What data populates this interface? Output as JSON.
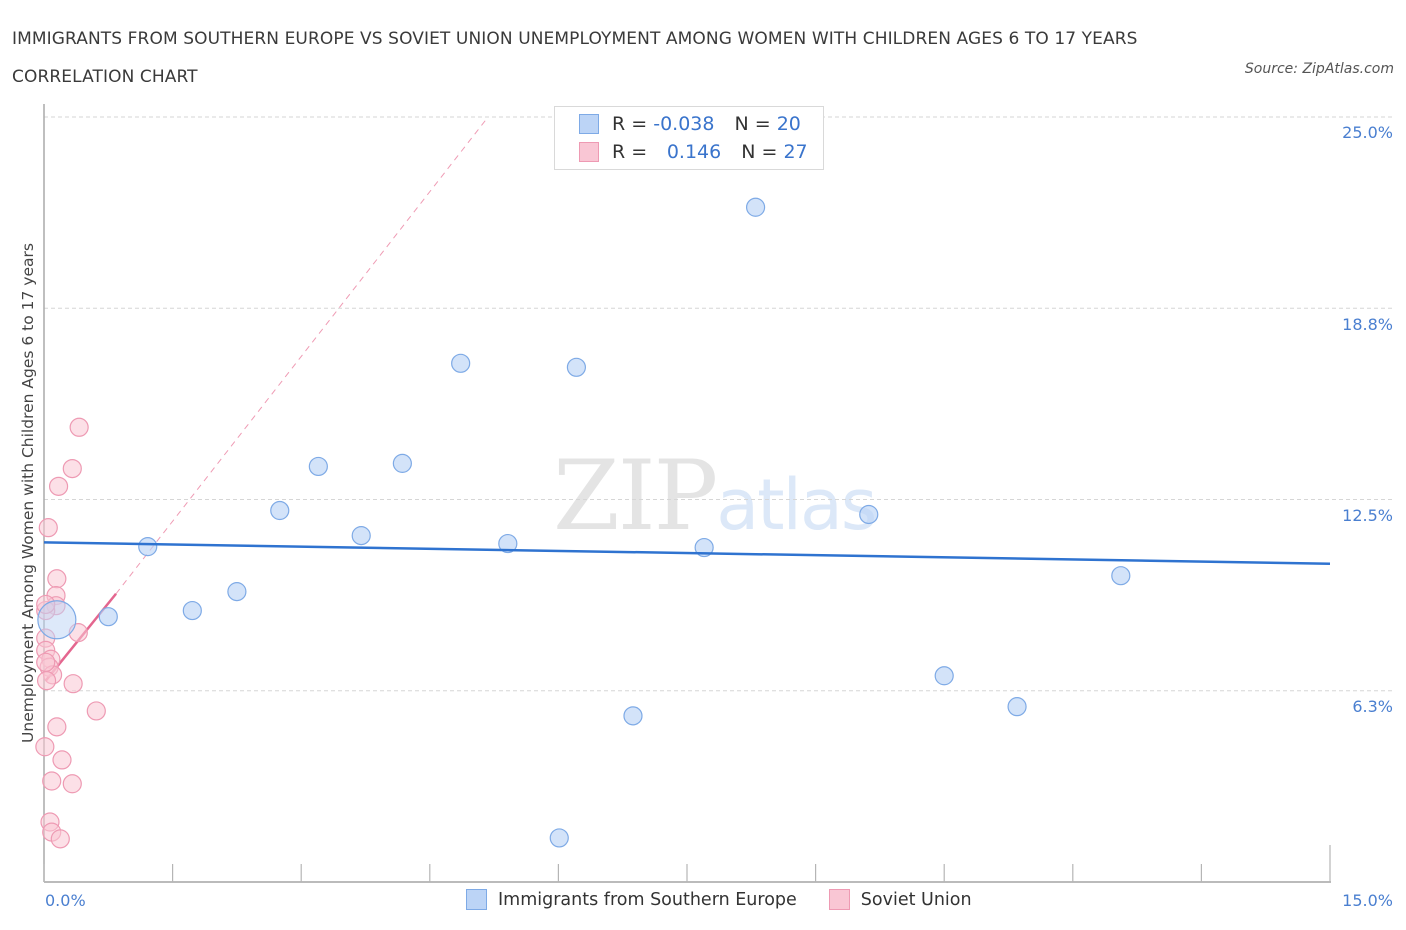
{
  "header": {
    "title": "IMMIGRANTS FROM SOUTHERN EUROPE VS SOVIET UNION UNEMPLOYMENT AMONG WOMEN WITH CHILDREN AGES 6 TO 17 YEARS CORRELATION CHART",
    "source": "Source: ZipAtlas.com"
  },
  "watermark": {
    "part1": "ZIP",
    "part2": "atlas"
  },
  "legend": {
    "rows": [
      {
        "r_label": "R = ",
        "r_value": "-0.038",
        "n_label": "N = ",
        "n_value": "20",
        "color": "#bcd4f6"
      },
      {
        "r_label": "R = ",
        "r_value": "0.146",
        "n_label": "N = ",
        "n_value": "27",
        "color": "#f9c6d4"
      }
    ]
  },
  "axes": {
    "ylabel": "Unemployment Among Women with Children Ages 6 to 17 years",
    "yticks": [
      "25.0%",
      "18.8%",
      "12.5%",
      "6.3%"
    ],
    "xticks": {
      "min": "0.0%",
      "max": "15.0%"
    }
  },
  "bottom_legend": {
    "items": [
      {
        "label": "Immigrants from Southern Europe",
        "color": "#bcd4f6"
      },
      {
        "label": "Soviet Union",
        "color": "#f9c6d4"
      }
    ]
  },
  "chart_data": {
    "type": "scatter",
    "title": "IMMIGRANTS FROM SOUTHERN EUROPE VS SOVIET UNION UNEMPLOYMENT AMONG WOMEN WITH CHILDREN AGES 6 TO 17 YEARS CORRELATION CHART",
    "xlabel": "",
    "ylabel": "Unemployment Among Women with Children Ages 6 to 17 years",
    "xlim": [
      0,
      15
    ],
    "ylim": [
      0,
      25
    ],
    "x_tick_labels": [
      "0.0%",
      "15.0%"
    ],
    "y_tick_labels": [
      "6.3%",
      "12.5%",
      "18.8%",
      "25.0%"
    ],
    "y_tick_values": [
      6.25,
      12.5,
      18.75,
      25.0
    ],
    "grid": {
      "horizontal": true,
      "style": "dashed"
    },
    "legend_position": "top-center and bottom",
    "series": [
      {
        "name": "Immigrants from Southern Europe",
        "color": "#5b93dd",
        "fill": "#bcd4f6",
        "R": -0.038,
        "N": 20,
        "trend": {
          "x": [
            0,
            15
          ],
          "y": [
            11.1,
            10.4
          ]
        },
        "points": [
          {
            "x": 0.15,
            "y": 8.57,
            "size": "large"
          },
          {
            "x": 0.75,
            "y": 8.67
          },
          {
            "x": 1.21,
            "y": 10.96
          },
          {
            "x": 1.73,
            "y": 8.87
          },
          {
            "x": 2.25,
            "y": 9.49
          },
          {
            "x": 2.75,
            "y": 12.14
          },
          {
            "x": 3.2,
            "y": 13.58
          },
          {
            "x": 3.7,
            "y": 11.32
          },
          {
            "x": 4.18,
            "y": 13.68
          },
          {
            "x": 4.86,
            "y": 16.95
          },
          {
            "x": 5.41,
            "y": 11.06
          },
          {
            "x": 6.01,
            "y": 1.44
          },
          {
            "x": 6.21,
            "y": 16.82
          },
          {
            "x": 6.87,
            "y": 5.43
          },
          {
            "x": 7.7,
            "y": 10.93
          },
          {
            "x": 8.3,
            "y": 22.05
          },
          {
            "x": 9.62,
            "y": 12.01
          },
          {
            "x": 10.5,
            "y": 6.74
          },
          {
            "x": 11.35,
            "y": 5.73
          },
          {
            "x": 12.56,
            "y": 10.01
          }
        ]
      },
      {
        "name": "Soviet Union",
        "color": "#e96b92",
        "fill": "#f9c6d4",
        "R": 0.146,
        "N": 27,
        "trend": {
          "x": [
            0.02,
            0.84
          ],
          "y": [
            6.58,
            9.42
          ],
          "dashed_extension_to": {
            "x": 5.18,
            "y": 25.0
          }
        },
        "points": [
          {
            "x": 0.41,
            "y": 14.86
          },
          {
            "x": 0.33,
            "y": 13.51
          },
          {
            "x": 0.17,
            "y": 12.93
          },
          {
            "x": 0.05,
            "y": 11.58
          },
          {
            "x": 0.15,
            "y": 9.91
          },
          {
            "x": 0.14,
            "y": 9.36
          },
          {
            "x": 0.14,
            "y": 9.03
          },
          {
            "x": 0.02,
            "y": 8.87
          },
          {
            "x": 0.4,
            "y": 8.15
          },
          {
            "x": 0.02,
            "y": 7.97
          },
          {
            "x": 0.02,
            "y": 7.57
          },
          {
            "x": 0.08,
            "y": 7.28
          },
          {
            "x": 0.06,
            "y": 7.02
          },
          {
            "x": 0.1,
            "y": 6.77
          },
          {
            "x": 0.03,
            "y": 6.58
          },
          {
            "x": 0.34,
            "y": 6.48
          },
          {
            "x": 0.61,
            "y": 5.59
          },
          {
            "x": 0.15,
            "y": 5.07
          },
          {
            "x": 0.01,
            "y": 4.42
          },
          {
            "x": 0.21,
            "y": 3.99
          },
          {
            "x": 0.09,
            "y": 3.3
          },
          {
            "x": 0.33,
            "y": 3.21
          },
          {
            "x": 0.07,
            "y": 1.96
          },
          {
            "x": 0.09,
            "y": 1.63
          },
          {
            "x": 0.19,
            "y": 1.41
          },
          {
            "x": 0.02,
            "y": 9.07
          },
          {
            "x": 0.02,
            "y": 7.18
          }
        ]
      }
    ]
  }
}
